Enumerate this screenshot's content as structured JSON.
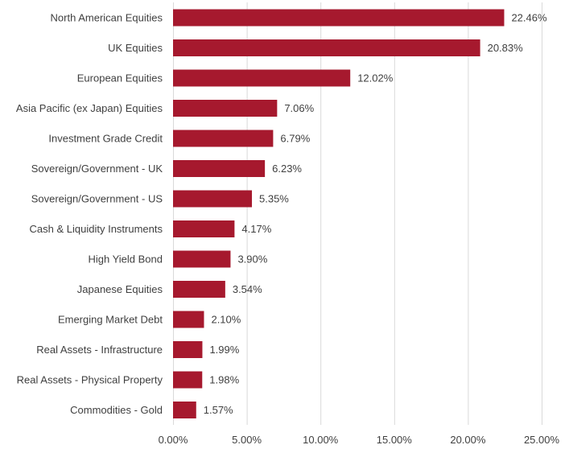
{
  "chart_data": {
    "type": "bar",
    "orientation": "horizontal",
    "categories": [
      "North American Equities",
      "UK Equities",
      "European Equities",
      "Asia Pacific (ex Japan) Equities",
      "Investment Grade Credit",
      "Sovereign/Government - UK",
      "Sovereign/Government - US",
      "Cash & Liquidity Instruments",
      "High Yield Bond",
      "Japanese Equities",
      "Emerging Market Debt",
      "Real Assets - Infrastructure",
      "Real Assets - Physical Property",
      "Commodities - Gold"
    ],
    "values": [
      22.46,
      20.83,
      12.02,
      7.06,
      6.79,
      6.23,
      5.35,
      4.17,
      3.9,
      3.54,
      2.1,
      1.99,
      1.98,
      1.57
    ],
    "value_labels": [
      "22.46%",
      "20.83%",
      "12.02%",
      "7.06%",
      "6.79%",
      "6.23%",
      "5.35%",
      "4.17%",
      "3.90%",
      "3.54%",
      "2.10%",
      "1.99%",
      "1.98%",
      "1.57%"
    ],
    "xlim": [
      0,
      25
    ],
    "xticks": [
      0,
      5,
      10,
      15,
      20,
      25
    ],
    "xtick_labels": [
      "0.00%",
      "5.00%",
      "10.00%",
      "15.00%",
      "20.00%",
      "25.00%"
    ],
    "grid": "vertical",
    "bar_color": "#a6192e",
    "title": "",
    "xlabel": "",
    "ylabel": ""
  }
}
